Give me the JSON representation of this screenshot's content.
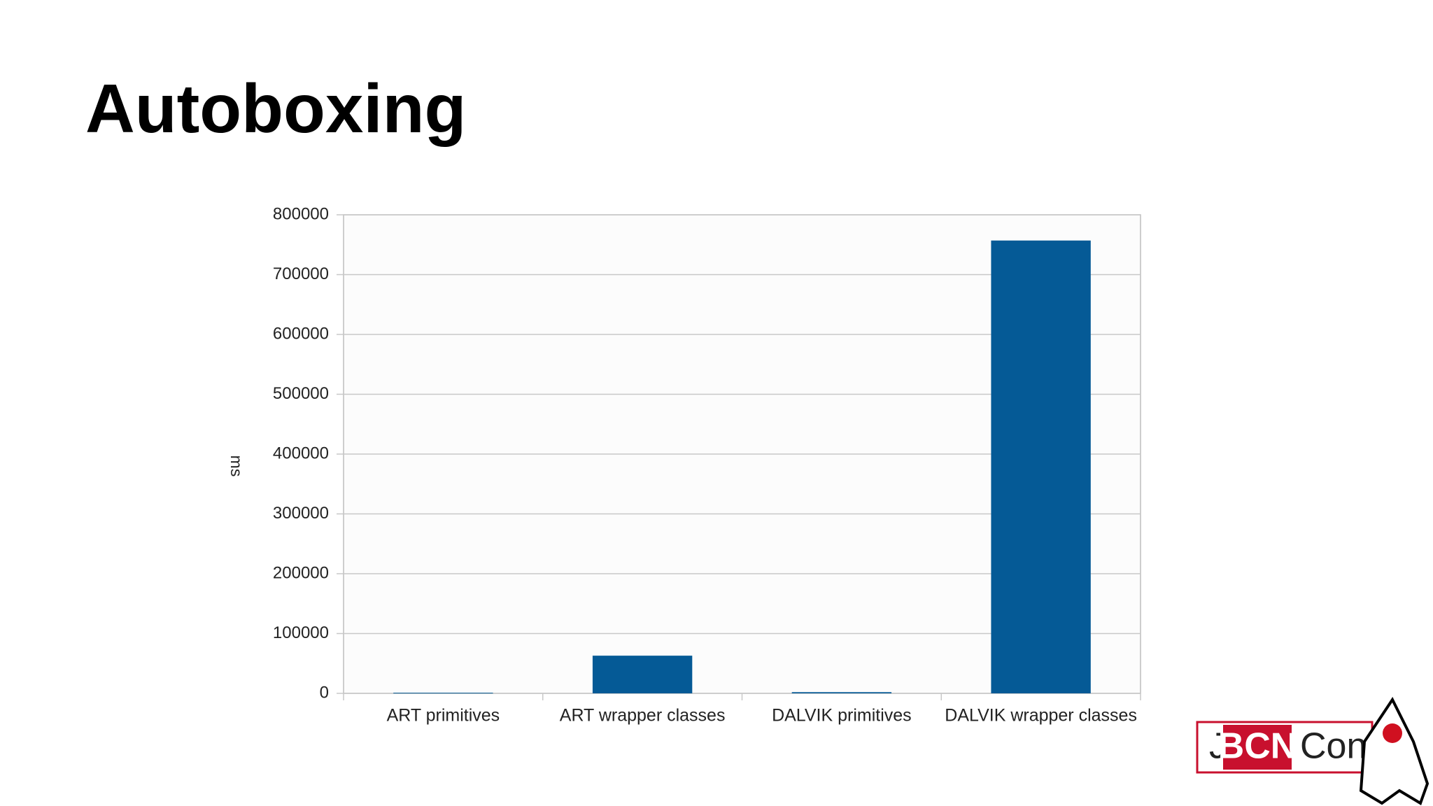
{
  "chart_data": {
    "type": "bar",
    "title": "Autoboxing",
    "ylabel": "ms",
    "categories": [
      "ART primitives",
      "ART wrapper classes",
      "DALVIK primitives",
      "DALVIK wrapper classes"
    ],
    "values": [
      1000,
      63000,
      2000,
      757000
    ],
    "color": "#055a96",
    "ylim": [
      0,
      800000
    ],
    "yticks": [
      0,
      100000,
      200000,
      300000,
      400000,
      500000,
      600000,
      700000,
      800000
    ],
    "grid": true
  },
  "logo": {
    "parts": [
      "J",
      "BCN",
      "Conf"
    ]
  }
}
